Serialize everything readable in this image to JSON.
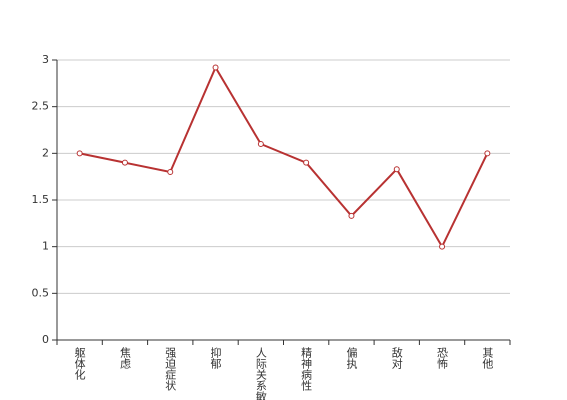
{
  "chart_data": {
    "type": "line",
    "categories": [
      "躯体化",
      "焦虑",
      "强迫症状",
      "抑郁",
      "人际关系敏感",
      "精神病性",
      "偏执",
      "敌对",
      "恐怖",
      "其他"
    ],
    "values": [
      2.0,
      1.9,
      1.8,
      2.92,
      2.1,
      1.9,
      1.33,
      1.83,
      1.0,
      2.0
    ],
    "color": "#b83232",
    "ylim": [
      0,
      3
    ],
    "yticks": [
      0,
      0.5,
      1,
      1.5,
      2,
      2.5,
      3
    ],
    "grid": true
  }
}
